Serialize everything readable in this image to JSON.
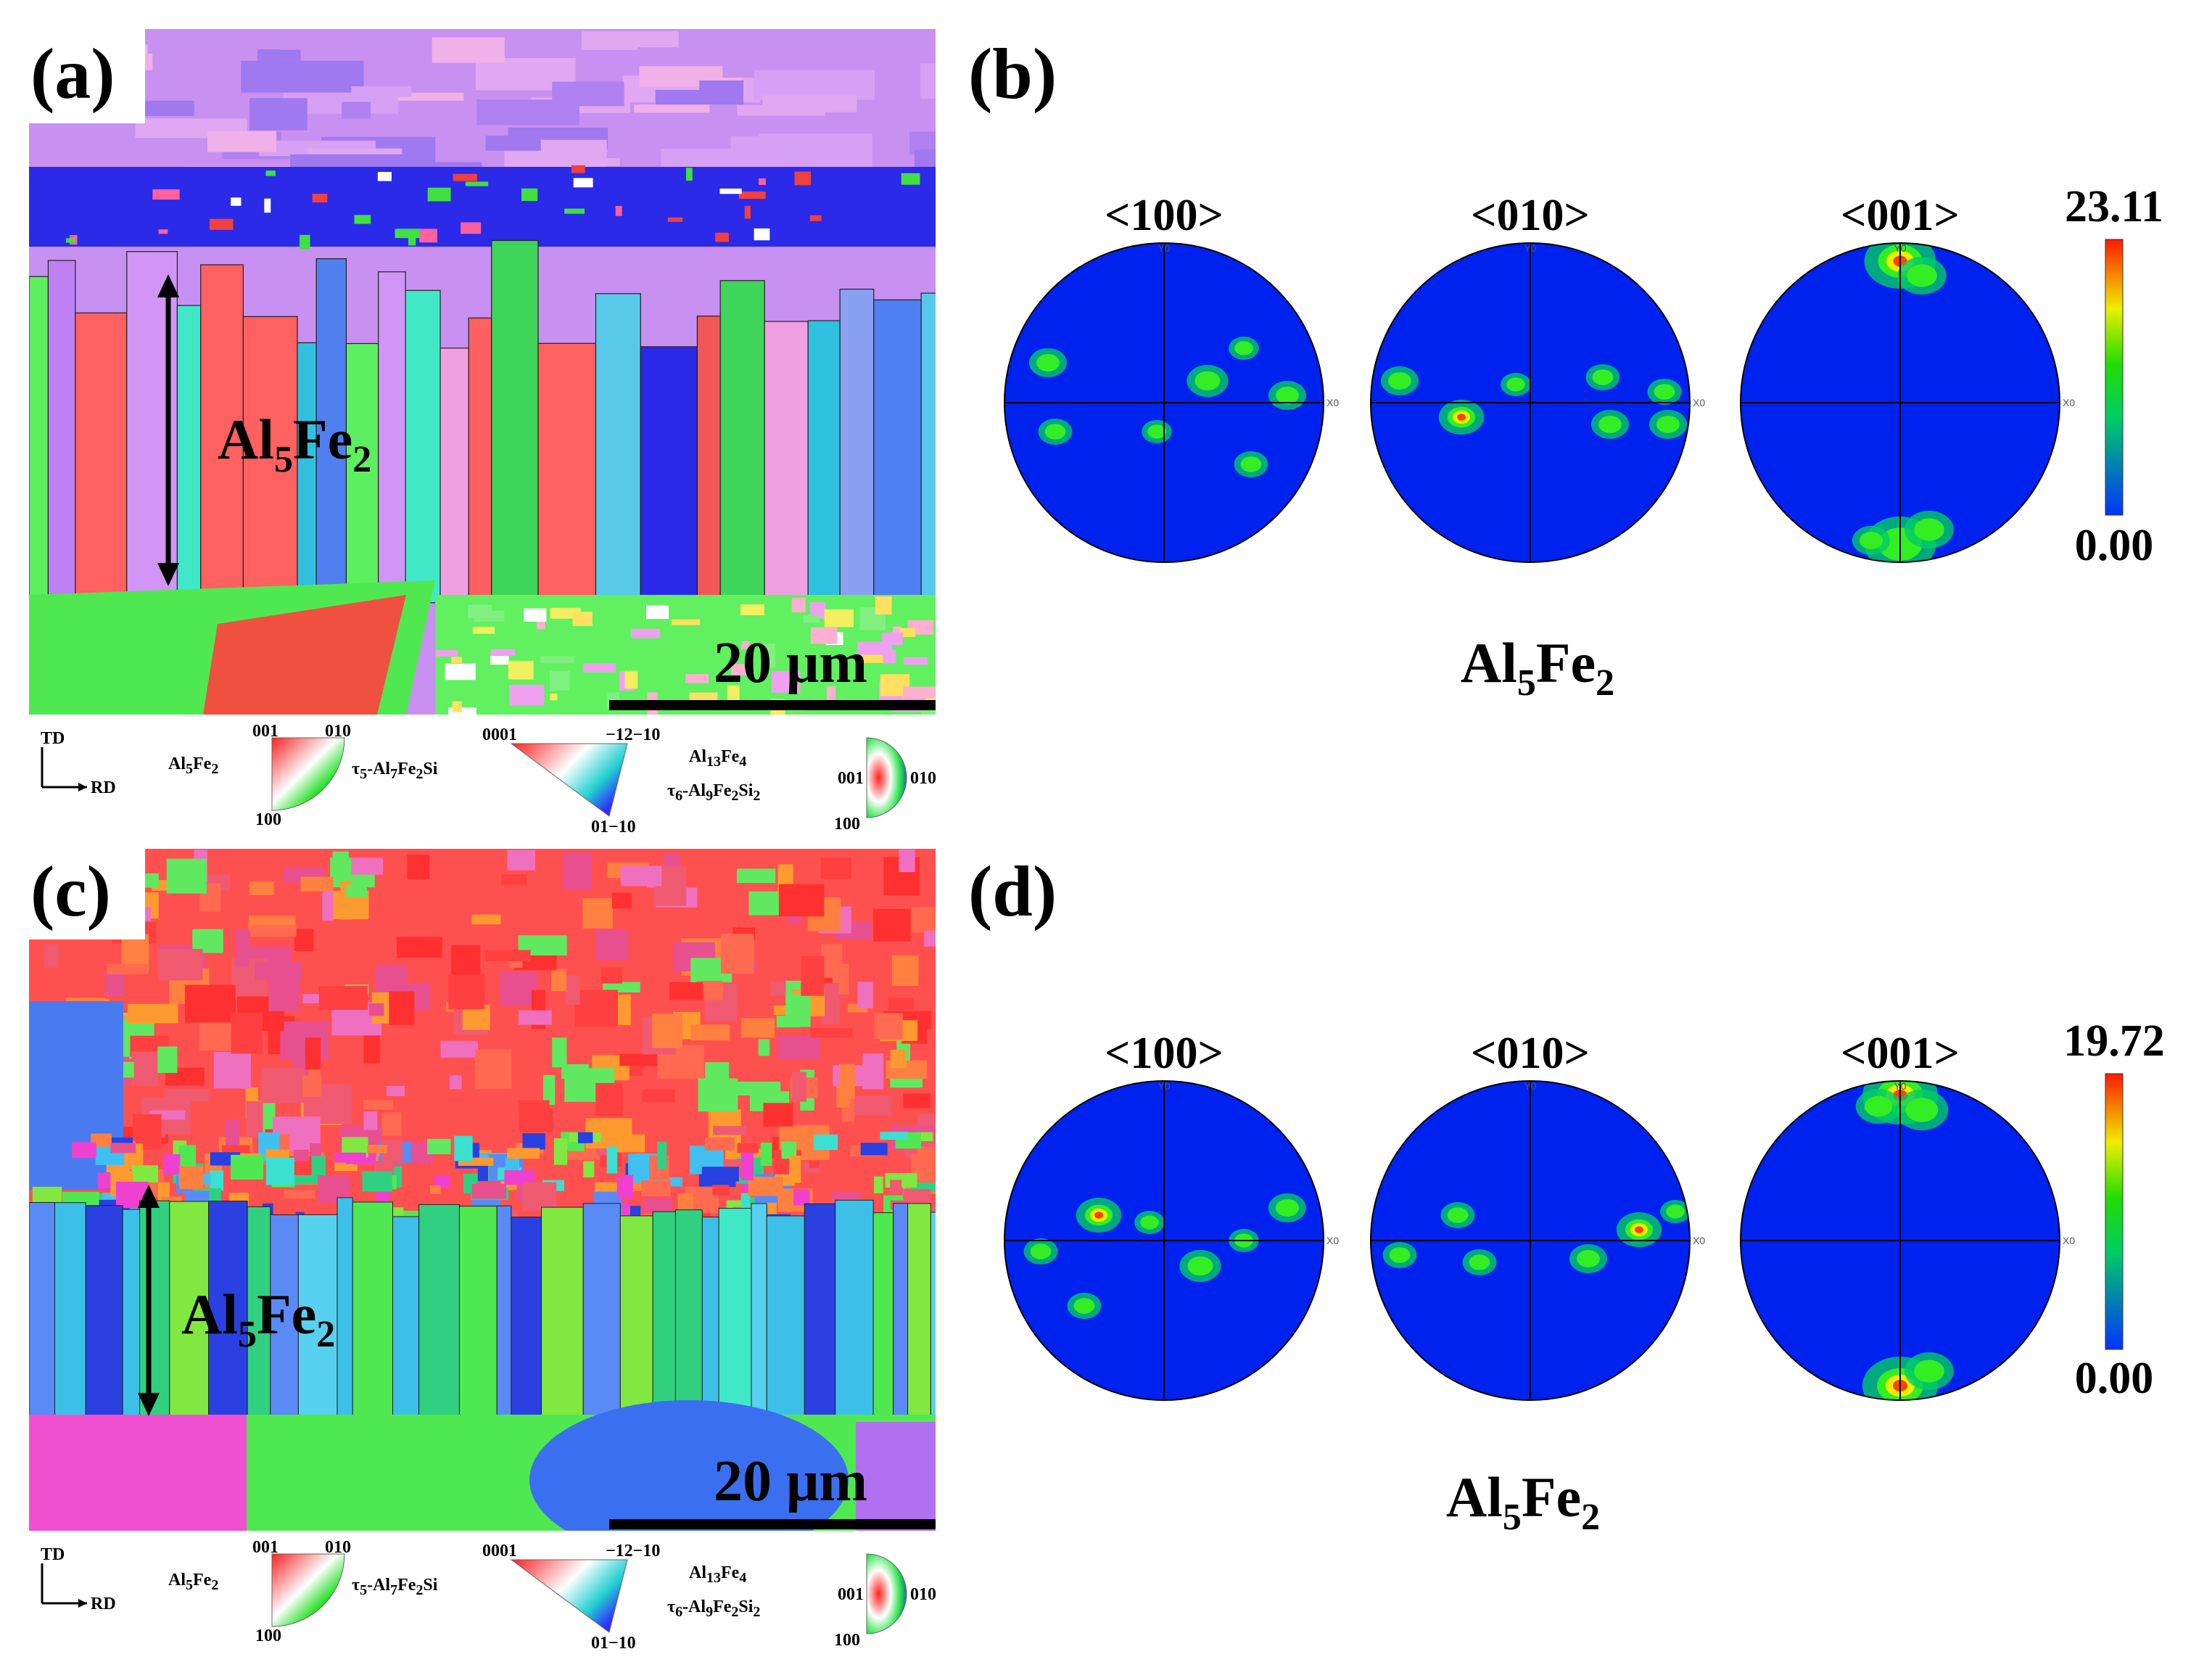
{
  "panels": {
    "a": {
      "label": "(a)",
      "phase_label": "Al5Fe2",
      "scale_bar": "20 μm",
      "grain_palette": [
        "#2a2ae8",
        "#3d3df5",
        "#4f7ff0",
        "#5aa0f5",
        "#3fd45a",
        "#5cf060",
        "#40e8c8",
        "#58c8e8",
        "#9a7af0",
        "#c080f5",
        "#d095f5",
        "#f0a0e0",
        "#f05858",
        "#ff6060",
        "#8aa0f0",
        "#30c0e0"
      ]
    },
    "c": {
      "label": "(c)",
      "phase_label": "Al5Fe2",
      "scale_bar": "20 μm",
      "grain_palette": [
        "#ff4040",
        "#ff6a50",
        "#f05a70",
        "#ff8040",
        "#e85090",
        "#50e850",
        "#3ce0d0",
        "#40c0f0",
        "#5a8af5",
        "#30d080",
        "#80e840",
        "#f040d0",
        "#ff9a30",
        "#2a40e0"
      ]
    },
    "b": {
      "label": "(b)",
      "pole_figures": [
        "<100>",
        "<010>",
        "<001>"
      ],
      "scale_max": "23.11",
      "scale_min": "0.00",
      "phase_label": "Al5Fe2",
      "axis_y": "Y0",
      "axis_x": "X0"
    },
    "d": {
      "label": "(d)",
      "pole_figures": [
        "<100>",
        "<010>",
        "<001>"
      ],
      "scale_max": "19.72",
      "scale_min": "0.00",
      "phase_label": "Al5Fe2",
      "axis_y": "Y0",
      "axis_x": "X0"
    }
  },
  "legend": {
    "td": "TD",
    "rd": "RD",
    "al5fe2": "Al5Fe2",
    "al5fe2_corners": [
      "001",
      "010",
      "100"
    ],
    "tau5": "τ5-Al7Fe2Si",
    "tau5_corners": [
      "0001",
      "−12−10",
      "01−10"
    ],
    "al13fe4": "Al13Fe4",
    "tau6": "τ6-Al9Fe2Si2",
    "al13fe4_corners": [
      "001",
      "010",
      "100"
    ]
  },
  "colors": {
    "pole_background": "#0022ee",
    "scale_top": "#ff1a00",
    "scale_mid": "#22dd00",
    "scale_bottom": "#0033ff"
  }
}
